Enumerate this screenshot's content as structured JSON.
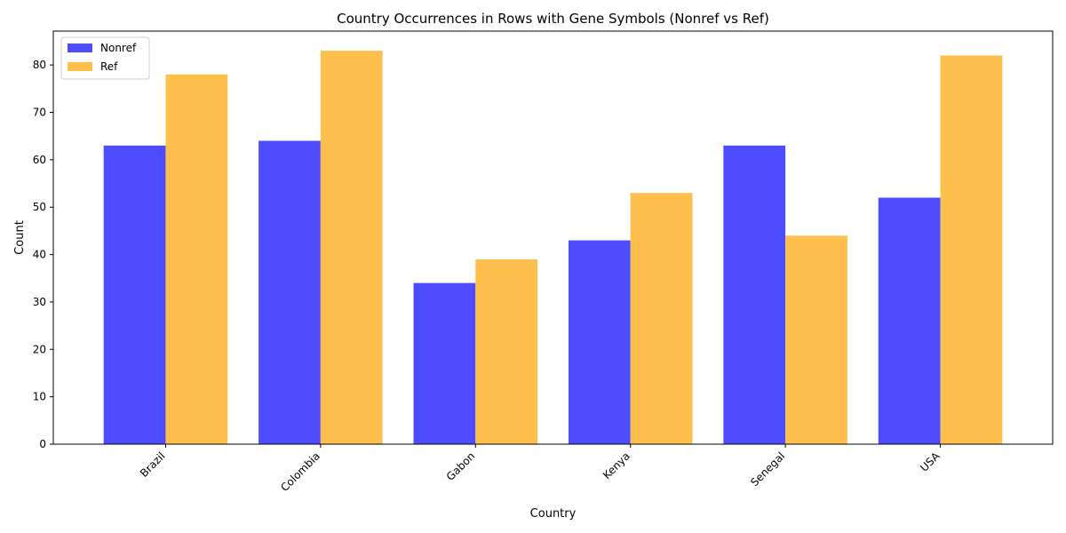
{
  "chart_data": {
    "type": "bar",
    "title": "Country Occurrences in Rows with Gene Symbols (Nonref vs Ref)",
    "xlabel": "Country",
    "ylabel": "Count",
    "categories": [
      "Brazil",
      "Colombia",
      "Gabon",
      "Kenya",
      "Senegal",
      "USA"
    ],
    "series": [
      {
        "name": "Nonref",
        "values": [
          63,
          64,
          34,
          43,
          63,
          52
        ],
        "color": "#4d4dff"
      },
      {
        "name": "Ref",
        "values": [
          78,
          83,
          39,
          53,
          44,
          82
        ],
        "color": "#ffbf4d"
      }
    ],
    "ylim": [
      0,
      87.15
    ],
    "yticks": [
      0,
      10,
      20,
      30,
      40,
      50,
      60,
      70,
      80
    ],
    "grid": false,
    "legend_position": "upper-left"
  }
}
